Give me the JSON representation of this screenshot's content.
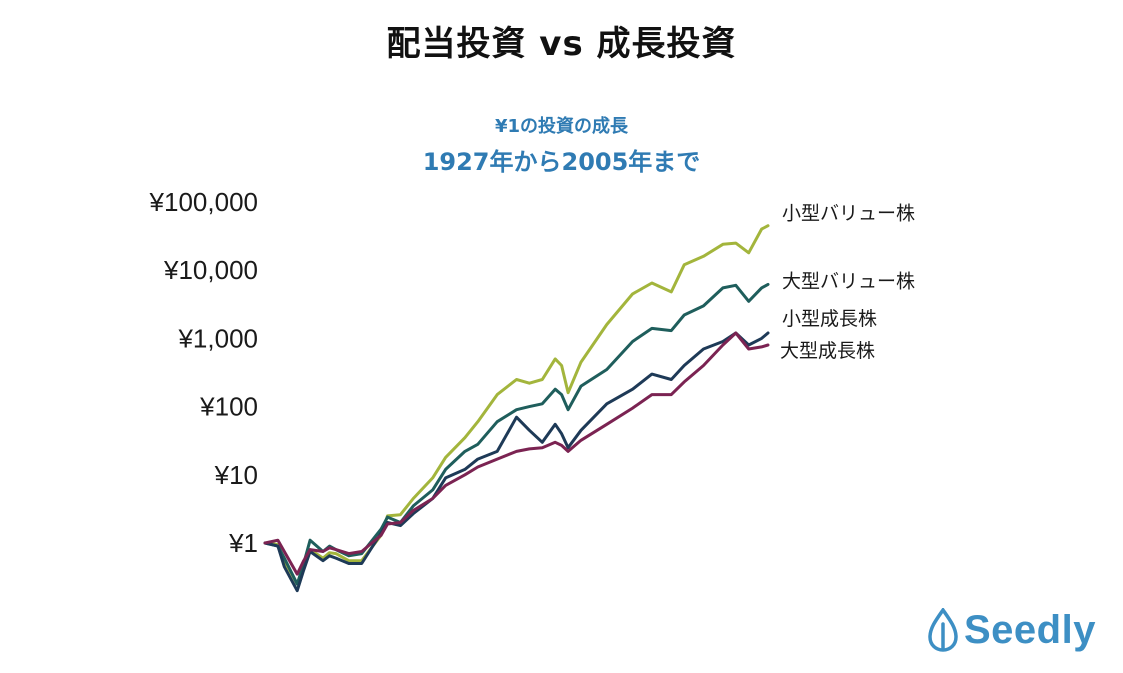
{
  "page": {
    "title": "配当投資 vs 成長投資",
    "brand": "Seedly"
  },
  "colors": {
    "title_accent": "#2f7bb3",
    "brand": "#3d8fc4"
  },
  "chart_data": {
    "type": "line",
    "title": "¥1の投資の成長",
    "subtitle": "1927年から2005年まで",
    "xlabel": "",
    "ylabel": "",
    "y_scale": "log",
    "ylim": [
      0.15,
      100000
    ],
    "xlim": [
      1927,
      2005
    ],
    "y_ticks": [
      1,
      10,
      100,
      1000,
      10000,
      100000
    ],
    "y_tick_labels": [
      "¥1",
      "¥10",
      "¥100",
      "¥1,000",
      "¥10,000",
      "¥100,000"
    ],
    "grid": false,
    "legend": "inline labels at line ends (right)",
    "series": [
      {
        "name": "小型バリュー株",
        "color": "#a3b53c",
        "x": [
          1927,
          1929,
          1930,
          1932,
          1933,
          1934,
          1936,
          1937,
          1938,
          1940,
          1942,
          1945,
          1946,
          1948,
          1950,
          1953,
          1955,
          1958,
          1960,
          1963,
          1966,
          1968,
          1970,
          1972,
          1973,
          1974,
          1976,
          1980,
          1984,
          1987,
          1990,
          1992,
          1995,
          1998,
          2000,
          2002,
          2004,
          2005
        ],
        "y": [
          1.0,
          0.95,
          0.55,
          0.25,
          0.45,
          0.8,
          0.6,
          0.72,
          0.7,
          0.55,
          0.55,
          1.3,
          2.5,
          2.6,
          4.5,
          9,
          18,
          35,
          60,
          150,
          250,
          220,
          250,
          500,
          400,
          160,
          450,
          1600,
          4500,
          6500,
          4800,
          12000,
          16000,
          24000,
          25000,
          18000,
          40000,
          45000
        ]
      },
      {
        "name": "大型バリュー株",
        "color": "#1f5e5c",
        "x": [
          1927,
          1929,
          1930,
          1932,
          1933,
          1934,
          1936,
          1937,
          1938,
          1940,
          1942,
          1945,
          1946,
          1948,
          1950,
          1953,
          1955,
          1958,
          1960,
          1963,
          1966,
          1968,
          1970,
          1972,
          1973,
          1974,
          1976,
          1980,
          1984,
          1987,
          1990,
          1992,
          1995,
          1998,
          2000,
          2002,
          2004,
          2005
        ],
        "y": [
          1.0,
          0.9,
          0.6,
          0.25,
          0.5,
          1.1,
          0.75,
          0.9,
          0.8,
          0.65,
          0.7,
          1.6,
          2.4,
          2.0,
          3.5,
          6,
          12,
          22,
          28,
          60,
          90,
          100,
          110,
          180,
          150,
          90,
          200,
          350,
          900,
          1400,
          1300,
          2200,
          3000,
          5500,
          6000,
          3500,
          5500,
          6200
        ]
      },
      {
        "name": "小型成長株",
        "color": "#1e3a57",
        "x": [
          1927,
          1929,
          1930,
          1932,
          1933,
          1934,
          1936,
          1937,
          1938,
          1940,
          1942,
          1945,
          1946,
          1948,
          1950,
          1953,
          1955,
          1958,
          1960,
          1963,
          1966,
          1968,
          1970,
          1972,
          1973,
          1974,
          1976,
          1980,
          1984,
          1987,
          1990,
          1992,
          1995,
          1998,
          2000,
          2002,
          2004,
          2005
        ],
        "y": [
          1.0,
          0.9,
          0.45,
          0.2,
          0.4,
          0.75,
          0.55,
          0.65,
          0.6,
          0.5,
          0.5,
          1.4,
          2.0,
          1.8,
          2.7,
          4.5,
          9,
          12,
          17,
          22,
          70,
          45,
          30,
          55,
          40,
          25,
          45,
          110,
          180,
          300,
          250,
          400,
          700,
          900,
          1200,
          800,
          1000,
          1200
        ]
      },
      {
        "name": "大型成長株",
        "color": "#7b2352",
        "x": [
          1927,
          1929,
          1930,
          1932,
          1933,
          1934,
          1936,
          1937,
          1938,
          1940,
          1942,
          1945,
          1946,
          1948,
          1950,
          1953,
          1955,
          1958,
          1960,
          1963,
          1966,
          1968,
          1970,
          1972,
          1973,
          1974,
          1976,
          1980,
          1984,
          1987,
          1990,
          1992,
          1995,
          1998,
          2000,
          2002,
          2004,
          2005
        ],
        "y": [
          1.0,
          1.1,
          0.75,
          0.35,
          0.55,
          0.8,
          0.75,
          0.85,
          0.8,
          0.7,
          0.75,
          1.3,
          1.9,
          2.0,
          3.0,
          4.5,
          7,
          10,
          13,
          17,
          22,
          24,
          25,
          30,
          27,
          22,
          32,
          55,
          95,
          150,
          150,
          230,
          400,
          800,
          1200,
          700,
          750,
          800
        ]
      }
    ]
  }
}
